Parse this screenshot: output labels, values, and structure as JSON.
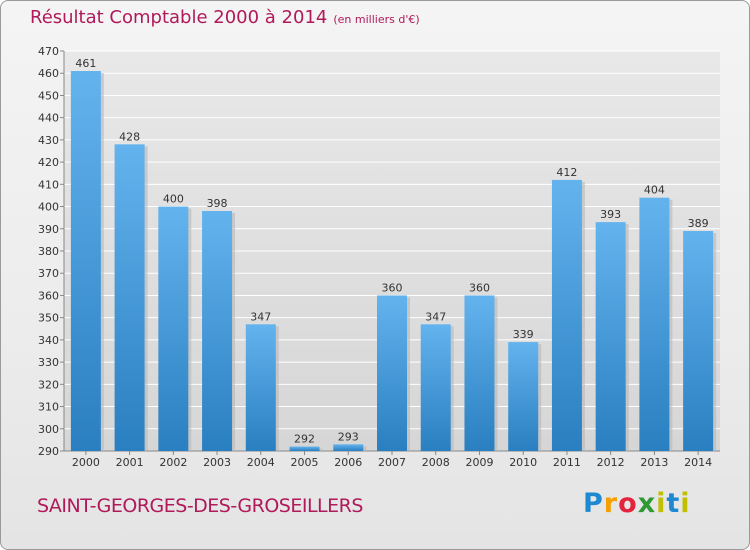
{
  "title": {
    "main": "Résultat Comptable 2000 à 2014",
    "unit": "(en milliers d'€)"
  },
  "footer": {
    "town": "SAINT-GEORGES-DES-GROSEILLERS",
    "logo": "Proxiti"
  },
  "colors": {
    "accent": "#b0195a",
    "bar_top": "#63b3ee",
    "bar_bottom": "#2a7fc0",
    "grid": "#ffffff",
    "plot_bg": "#dcdcdc"
  },
  "chart_data": {
    "type": "bar",
    "title": "Résultat Comptable 2000 à 2014",
    "subtitle": "(en milliers d'€)",
    "xlabel": "",
    "ylabel": "",
    "categories": [
      "2000",
      "2001",
      "2002",
      "2003",
      "2004",
      "2005",
      "2006",
      "2007",
      "2008",
      "2009",
      "2010",
      "2011",
      "2012",
      "2013",
      "2014"
    ],
    "values": [
      461,
      428,
      400,
      398,
      347,
      292,
      293,
      360,
      347,
      360,
      339,
      412,
      393,
      404,
      389
    ],
    "ylim": [
      290,
      470
    ],
    "ytick_step": 10,
    "grid": true,
    "data_labels": true,
    "legend": "none"
  }
}
